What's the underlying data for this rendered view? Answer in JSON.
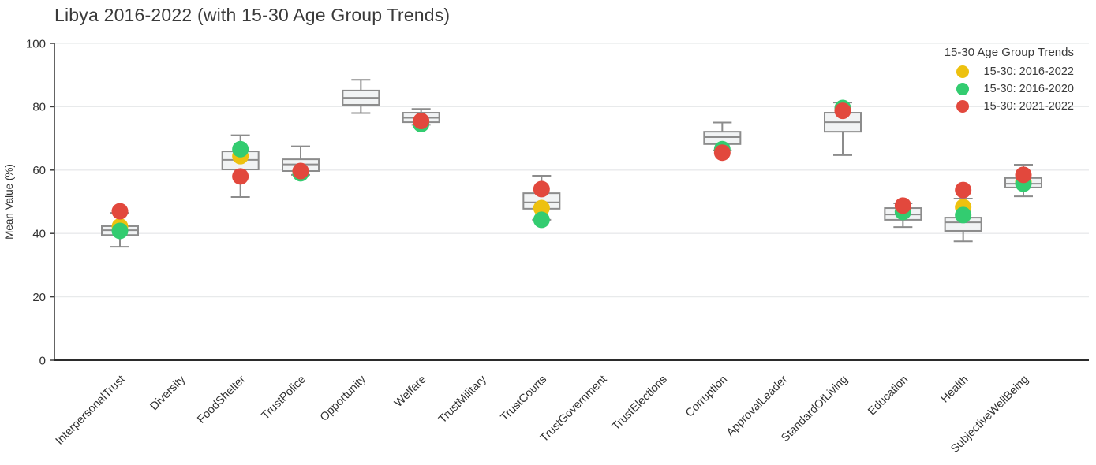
{
  "title": "Libya 2016-2022 (with 15-30 Age Group Trends)",
  "legend": {
    "title": "15-30 Age Group Trends",
    "items": [
      {
        "label": "15-30: 2016-2022",
        "color": "#edc10f"
      },
      {
        "label": "15-30: 2016-2020",
        "color": "#33cc70"
      },
      {
        "label": "15-30: 2021-2022",
        "color": "#e2483d"
      }
    ]
  },
  "chart_data": {
    "type": "box",
    "title": "Libya 2016-2022 (with 15-30 Age Group Trends)",
    "xlabel": "",
    "ylabel": "Mean Value (%)",
    "ylim": [
      0,
      100
    ],
    "yticks": [
      0,
      20,
      40,
      60,
      80,
      100
    ],
    "grid": true,
    "legend_position": "upper-right",
    "box_style": {
      "fill": "#f1f3f4",
      "stroke": "#8c8c8c"
    },
    "categories": [
      "InterpersonalTrust",
      "Diversity",
      "FoodShelter",
      "TrustPolice",
      "Opportunity",
      "Welfare",
      "TrustMilitary",
      "TrustCourts",
      "TrustGovernment",
      "TrustElections",
      "Corruption",
      "ApprovalLeader",
      "StandardOfLiving",
      "Education",
      "Health",
      "SubjectiveWellBeing"
    ],
    "boxplots": [
      {
        "category": "InterpersonalTrust",
        "whislo": 35.8,
        "q1": 39.5,
        "med": 41.0,
        "q3": 42.3,
        "whishi": 46.5
      },
      null,
      {
        "category": "FoodShelter",
        "whislo": 51.5,
        "q1": 60.2,
        "med": 63.2,
        "q3": 65.9,
        "whishi": 71.0
      },
      {
        "category": "TrustPolice",
        "whislo": 58.5,
        "q1": 59.7,
        "med": 61.8,
        "q3": 63.4,
        "whishi": 67.5
      },
      {
        "category": "Opportunity",
        "whislo": 78.0,
        "q1": 80.6,
        "med": 82.8,
        "q3": 85.1,
        "whishi": 88.5
      },
      {
        "category": "Welfare",
        "whislo": 74.3,
        "q1": 75.1,
        "med": 76.5,
        "q3": 78.1,
        "whishi": 79.3
      },
      null,
      {
        "category": "TrustCourts",
        "whislo": 44.3,
        "q1": 47.8,
        "med": 49.8,
        "q3": 52.7,
        "whishi": 58.2
      },
      null,
      null,
      {
        "category": "Corruption",
        "whislo": 66.2,
        "q1": 68.2,
        "med": 70.4,
        "q3": 72.1,
        "whishi": 75.0
      },
      null,
      {
        "category": "StandardOfLiving",
        "whislo": 64.7,
        "q1": 72.1,
        "med": 75.1,
        "q3": 78.1,
        "whishi": 81.3
      },
      {
        "category": "Education",
        "whislo": 42.0,
        "q1": 44.3,
        "med": 46.0,
        "q3": 48.0,
        "whishi": 49.5
      },
      {
        "category": "Health",
        "whislo": 37.5,
        "q1": 40.8,
        "med": 43.5,
        "q3": 45.0,
        "whishi": 51.0
      },
      {
        "category": "SubjectiveWellBeing",
        "whislo": 51.7,
        "q1": 54.5,
        "med": 55.7,
        "q3": 57.5,
        "whishi": 61.7
      }
    ],
    "series": [
      {
        "name": "15-30: 2016-2022",
        "color": "#edc10f",
        "values": [
          42.2,
          null,
          64.4,
          null,
          null,
          null,
          null,
          48.0,
          null,
          null,
          null,
          null,
          null,
          null,
          48.3,
          56.3
        ]
      },
      {
        "name": "15-30: 2016-2020",
        "color": "#33cc70",
        "values": [
          40.8,
          null,
          66.6,
          59.0,
          null,
          74.5,
          null,
          44.3,
          null,
          null,
          66.6,
          null,
          79.6,
          46.8,
          45.8,
          55.7
        ]
      },
      {
        "name": "15-30: 2021-2022",
        "color": "#e2483d",
        "values": [
          47.0,
          null,
          58.0,
          59.7,
          null,
          75.5,
          null,
          54.0,
          null,
          null,
          65.5,
          null,
          78.7,
          48.8,
          53.7,
          58.5
        ]
      }
    ]
  }
}
